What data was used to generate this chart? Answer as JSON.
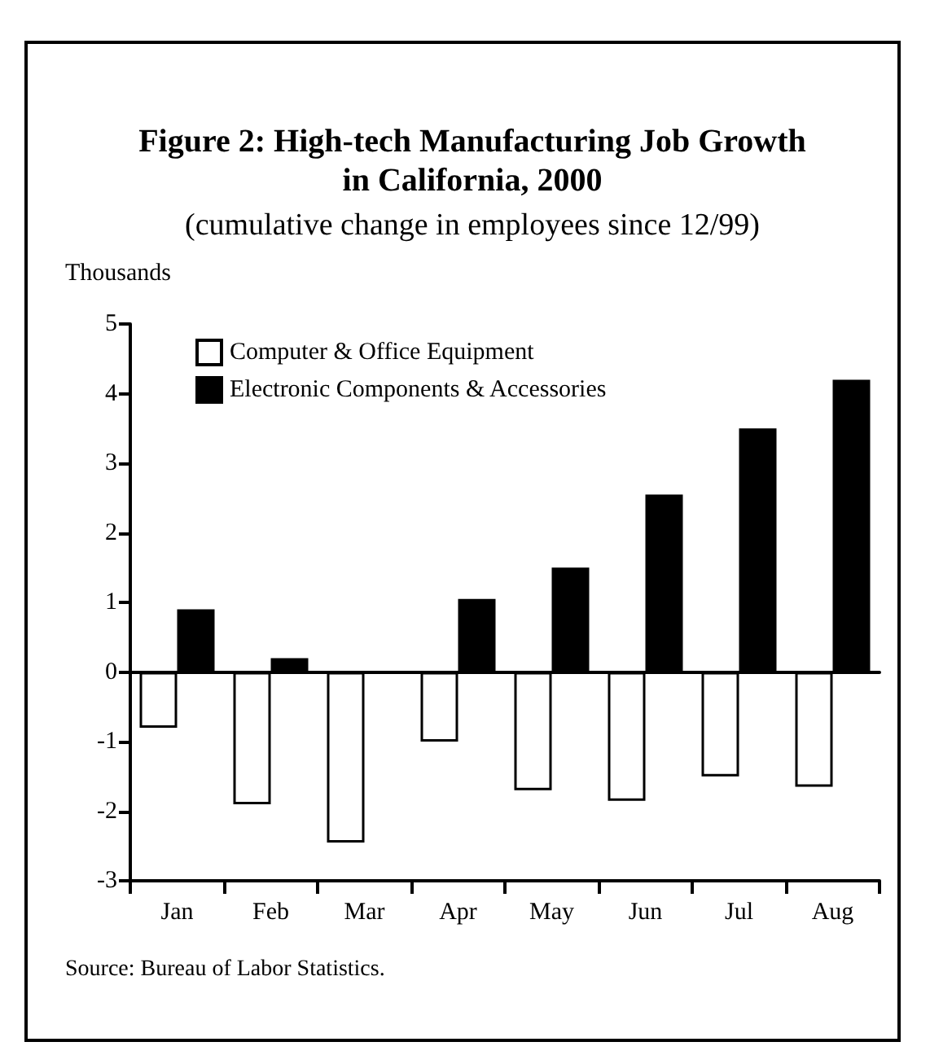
{
  "chart_data": {
    "type": "bar",
    "title": "Figure 2:  High-tech Manufacturing Job Growth in California, 2000",
    "subtitle": "(cumulative change in employees since 12/99)",
    "ylabel": "Thousands",
    "annotations": [
      "Source:  Bureau of Labor Statistics."
    ],
    "categories": [
      "Jan",
      "Feb",
      "Mar",
      "Apr",
      "May",
      "Jun",
      "Jul",
      "Aug"
    ],
    "series": [
      {
        "name": "Computer & Office Equipment",
        "color": "#ffffff",
        "values": [
          -0.8,
          -1.9,
          -2.45,
          -1.0,
          -1.7,
          -1.85,
          -1.5,
          -1.65
        ]
      },
      {
        "name": "Electronic Components & Accessories",
        "color": "#000000",
        "values": [
          0.9,
          0.2,
          -0.02,
          1.05,
          1.5,
          2.55,
          3.5,
          4.2
        ]
      }
    ],
    "ylim": [
      -3,
      5
    ],
    "yticks": [
      -3,
      -2,
      -1,
      0,
      1,
      2,
      3,
      4,
      5
    ],
    "legend": "top left"
  }
}
